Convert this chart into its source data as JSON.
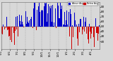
{
  "num_days": 365,
  "seed": 42,
  "ylim": [
    5,
    100
  ],
  "yticks": [
    20,
    30,
    40,
    50,
    60,
    70,
    80,
    90
  ],
  "ytick_labels": [
    "20",
    "30",
    "40",
    "50",
    "60",
    "70",
    "80",
    "90"
  ],
  "background_color": "#d8d8d8",
  "plot_bg": "#d8d8d8",
  "color_above": "#0000cc",
  "color_below": "#cc0000",
  "bar_width": 0.85,
  "threshold": 50,
  "legend_label_blue": "Above Avg",
  "legend_label_red": "Below Avg",
  "grid_color": "#aaaaaa",
  "grid_style": "--",
  "tick_fontsize": 3.0,
  "month_starts": [
    0,
    31,
    59,
    90,
    120,
    151,
    181,
    212,
    243,
    273,
    304,
    334
  ],
  "month_labels": [
    "5/1",
    "6/1",
    "7/1",
    "8/1",
    "9/1",
    "10/1",
    "11/1",
    "12/1",
    "1/1",
    "2/1",
    "3/1",
    "4/1"
  ]
}
